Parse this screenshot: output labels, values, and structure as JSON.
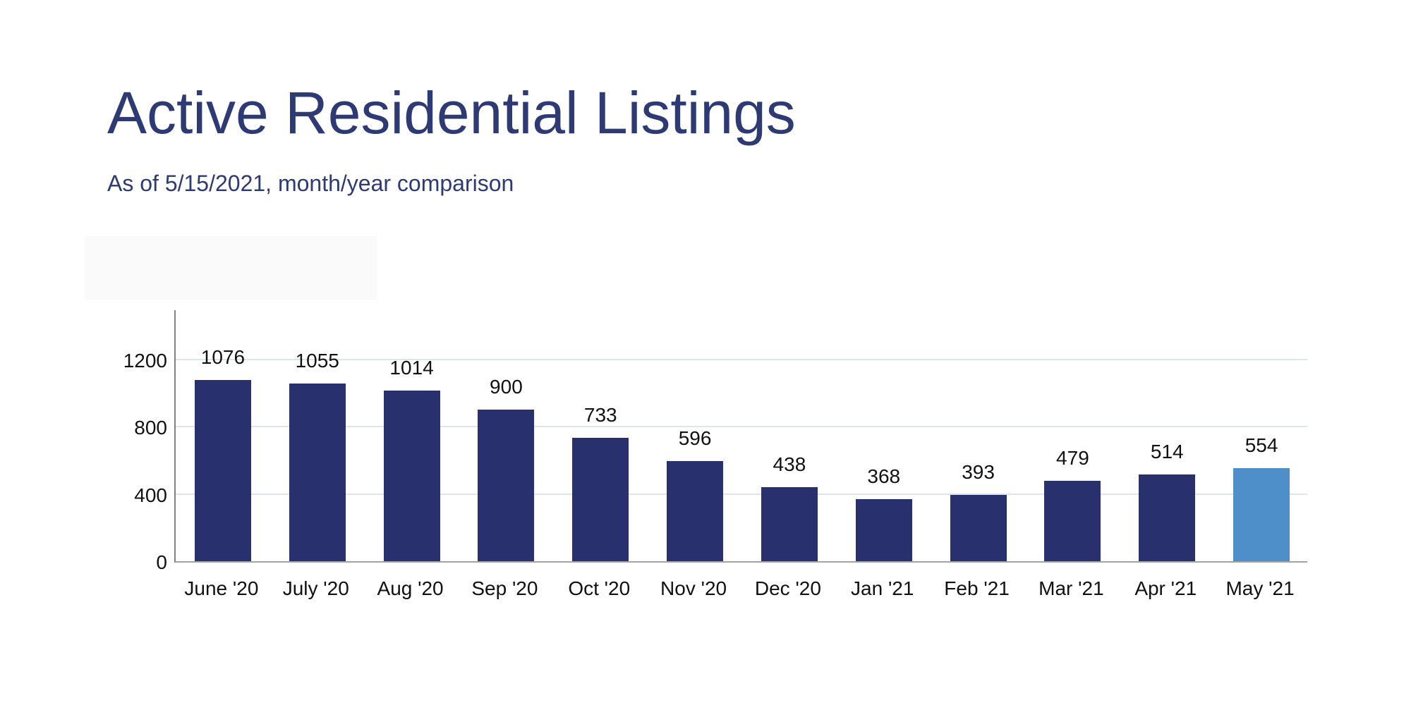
{
  "header": {
    "title": "Active Residential Listings",
    "subtitle": "As of 5/15/2021, month/year comparison",
    "text_color": "#2d3a73"
  },
  "chart_data": {
    "type": "bar",
    "title": "Active Residential Listings",
    "subtitle": "As of 5/15/2021, month/year comparison",
    "categories": [
      "June '20",
      "July '20",
      "Aug '20",
      "Sep '20",
      "Oct '20",
      "Nov '20",
      "Dec '20",
      "Jan '21",
      "Feb '21",
      "Mar '21",
      "Apr '21",
      "May '21"
    ],
    "values": [
      1076,
      1055,
      1014,
      900,
      733,
      596,
      438,
      368,
      393,
      479,
      514,
      554
    ],
    "highlighted_category": "May '21",
    "highlight_index": 11,
    "bar_color": "#28316d",
    "highlight_color": "#4e8ec9",
    "gridline_color": "#dde4ef",
    "label_color": "#111111",
    "yticks": [
      0,
      400,
      800,
      1200
    ],
    "ylim": [
      0,
      1500
    ],
    "grid": true,
    "legend": false,
    "data_labels_shown": true,
    "xlabel": "",
    "ylabel": ""
  }
}
